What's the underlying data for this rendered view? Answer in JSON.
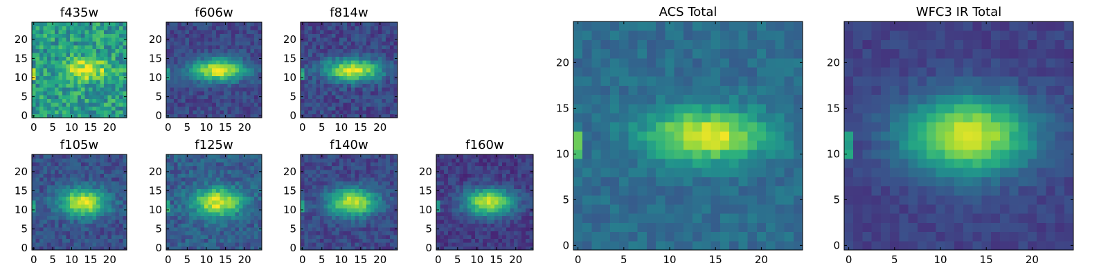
{
  "chart_data": [
    {
      "type": "heatmap",
      "title": "f435w",
      "xlim": [
        0,
        25
      ],
      "ylim": [
        0,
        25
      ],
      "xticks": [
        "0",
        "5",
        "10",
        "15",
        "20"
      ],
      "yticks": [
        "0",
        "5",
        "10",
        "15",
        "20"
      ],
      "colormap": "viridis",
      "source": {
        "center": [
          14,
          12
        ],
        "sigma_x": 4.0,
        "sigma_y": 2.0,
        "amplitude": 0.45,
        "background": 0.55,
        "noise": 0.38
      }
    },
    {
      "type": "heatmap",
      "title": "f606w",
      "xlim": [
        0,
        25
      ],
      "ylim": [
        0,
        25
      ],
      "xticks": [
        "0",
        "5",
        "10",
        "15",
        "20"
      ],
      "yticks": [
        "0",
        "5",
        "10",
        "15",
        "20"
      ],
      "colormap": "viridis",
      "source": {
        "center": [
          13,
          12
        ],
        "sigma_x": 5.0,
        "sigma_y": 2.0,
        "amplitude": 0.75,
        "background": 0.22,
        "noise": 0.18
      }
    },
    {
      "type": "heatmap",
      "title": "f814w",
      "xlim": [
        0,
        25
      ],
      "ylim": [
        0,
        25
      ],
      "xticks": [
        "0",
        "5",
        "10",
        "15",
        "20"
      ],
      "yticks": [
        "0",
        "5",
        "10",
        "15",
        "20"
      ],
      "colormap": "viridis",
      "source": {
        "center": [
          13,
          12
        ],
        "sigma_x": 5.0,
        "sigma_y": 2.0,
        "amplitude": 0.75,
        "background": 0.22,
        "noise": 0.2
      }
    },
    {
      "type": "heatmap",
      "title": "f105w",
      "xlim": [
        0,
        25
      ],
      "ylim": [
        0,
        25
      ],
      "xticks": [
        "0",
        "5",
        "10",
        "15",
        "20"
      ],
      "yticks": [
        "0",
        "5",
        "10",
        "15",
        "20"
      ],
      "colormap": "viridis",
      "source": {
        "center": [
          13,
          12
        ],
        "sigma_x": 4.5,
        "sigma_y": 2.5,
        "amplitude": 0.72,
        "background": 0.25,
        "noise": 0.2
      }
    },
    {
      "type": "heatmap",
      "title": "f125w",
      "xlim": [
        0,
        25
      ],
      "ylim": [
        0,
        25
      ],
      "xticks": [
        "0",
        "5",
        "10",
        "15",
        "20"
      ],
      "yticks": [
        "0",
        "5",
        "10",
        "15",
        "20"
      ],
      "colormap": "viridis",
      "source": {
        "center": [
          13,
          12
        ],
        "sigma_x": 4.5,
        "sigma_y": 2.5,
        "amplitude": 0.68,
        "background": 0.3,
        "noise": 0.22
      }
    },
    {
      "type": "heatmap",
      "title": "f140w",
      "xlim": [
        0,
        25
      ],
      "ylim": [
        0,
        25
      ],
      "xticks": [
        "0",
        "5",
        "10",
        "15",
        "20"
      ],
      "yticks": [
        "0",
        "5",
        "10",
        "15",
        "20"
      ],
      "colormap": "viridis",
      "source": {
        "center": [
          13,
          12
        ],
        "sigma_x": 4.5,
        "sigma_y": 2.5,
        "amplitude": 0.72,
        "background": 0.22,
        "noise": 0.18
      }
    },
    {
      "type": "heatmap",
      "title": "f160w",
      "xlim": [
        0,
        25
      ],
      "ylim": [
        0,
        25
      ],
      "xticks": [
        "0",
        "5",
        "10",
        "15",
        "20"
      ],
      "yticks": [
        "0",
        "5",
        "10",
        "15",
        "20"
      ],
      "colormap": "viridis",
      "source": {
        "center": [
          13,
          12
        ],
        "sigma_x": 4.5,
        "sigma_y": 2.5,
        "amplitude": 0.75,
        "background": 0.18,
        "noise": 0.16
      }
    },
    {
      "type": "heatmap",
      "title": "ACS Total",
      "xlim": [
        0,
        25
      ],
      "ylim": [
        0,
        25
      ],
      "xticks": [
        "0",
        "5",
        "10",
        "15",
        "20"
      ],
      "yticks": [
        "0",
        "5",
        "10",
        "15",
        "20"
      ],
      "colormap": "viridis",
      "source": {
        "center": [
          14,
          12
        ],
        "sigma_x": 4.5,
        "sigma_y": 2.0,
        "amplitude": 0.62,
        "background": 0.36,
        "noise": 0.14
      }
    },
    {
      "type": "heatmap",
      "title": "WFC3 IR Total",
      "xlim": [
        0,
        25
      ],
      "ylim": [
        0,
        25
      ],
      "xticks": [
        "0",
        "5",
        "10",
        "15",
        "20"
      ],
      "yticks": [
        "0",
        "5",
        "10",
        "15",
        "20"
      ],
      "colormap": "viridis",
      "source": {
        "center": [
          13,
          12
        ],
        "sigma_x": 5.0,
        "sigma_y": 3.0,
        "amplitude": 0.75,
        "background": 0.2,
        "noise": 0.1
      }
    }
  ]
}
